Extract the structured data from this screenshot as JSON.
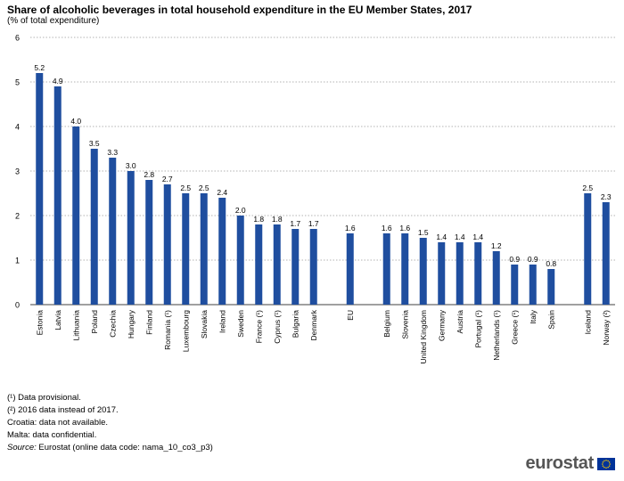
{
  "chart_data": {
    "type": "bar",
    "title": "Share of alcoholic beverages in total household expenditure in the EU Member States, 2017",
    "subtitle": "(% of total expenditure)",
    "categories": [
      "Estonia",
      "Latvia",
      "Lithuania",
      "Poland",
      "Czechia",
      "Hungary",
      "Finland",
      "Romania (¹)",
      "Luxembourg",
      "Slovakia",
      "Ireland",
      "Sweden",
      "France (¹)",
      "Cyprus (¹)",
      "Bulgaria",
      "Denmark",
      "",
      "EU",
      "",
      "Belgium",
      "Slovenia",
      "United Kingdom",
      "Germany",
      "Austria",
      "Portugal (¹)",
      "Netherlands (¹)",
      "Greece (¹)",
      "Italy",
      "Spain",
      "",
      "Iceland",
      "Norway (²)"
    ],
    "values": [
      5.2,
      4.9,
      4.0,
      3.5,
      3.3,
      3.0,
      2.8,
      2.7,
      2.5,
      2.5,
      2.4,
      2.0,
      1.8,
      1.8,
      1.7,
      1.7,
      null,
      1.6,
      null,
      1.6,
      1.6,
      1.5,
      1.4,
      1.4,
      1.4,
      1.2,
      0.9,
      0.9,
      0.8,
      null,
      2.5,
      2.3
    ],
    "value_labels": [
      "5.2",
      "4.9",
      "4.0",
      "3.5",
      "3.3",
      "3.0",
      "2.8",
      "2.7",
      "2.5",
      "2.5",
      "2.4",
      "2.0",
      "1.8",
      "1.8",
      "1.7",
      "1.7",
      "",
      "1.6",
      "",
      "1.6",
      "1.6",
      "1.5",
      "1.4",
      "1.4",
      "1.4",
      "1.2",
      "0.9",
      "0.9",
      "0.8",
      "",
      "2.5",
      "2.3"
    ],
    "ylim": [
      0,
      6
    ],
    "yticks": [
      0,
      1,
      2,
      3,
      4,
      5,
      6
    ],
    "grid": true,
    "bar_color": "#1f4e9f"
  },
  "notes": {
    "n1": "(¹) Data provisional.",
    "n2": "(²) 2016 data instead of 2017.",
    "n3": "Croatia: data not available.",
    "n4": "Malta: data confidential.",
    "source_label": "Source:",
    "source_text": " Eurostat (online data code: nama_10_co3_p3)"
  },
  "logo": {
    "text": "eurostat",
    "flag_color": "#003399",
    "star_color": "#ffcc00"
  }
}
